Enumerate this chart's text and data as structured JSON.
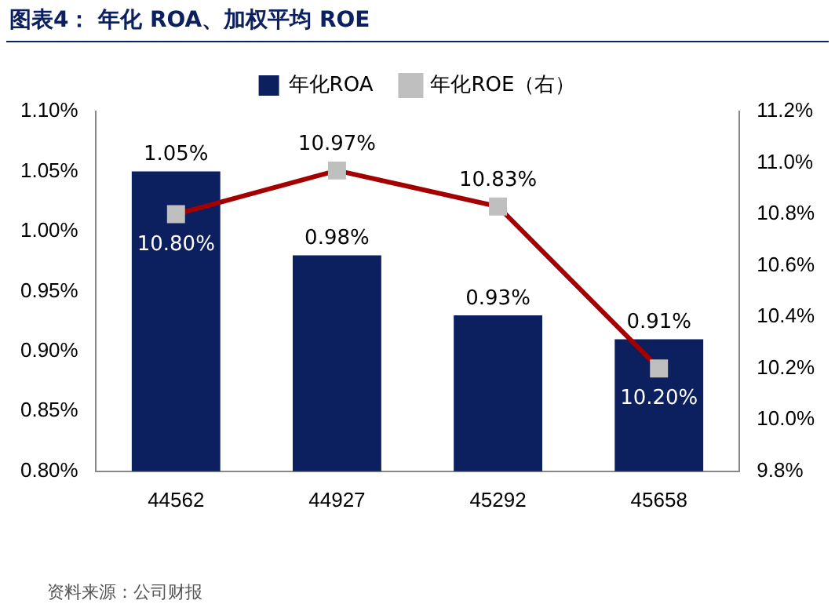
{
  "chart_data": {
    "type": "bar",
    "title": "图表4：  年化 ROA、加权平均 ROE",
    "categories": [
      "44562",
      "44927",
      "45292",
      "45658"
    ],
    "series": [
      {
        "name": "年化ROA",
        "color": "#0c1f5e",
        "values": [
          1.05,
          0.98,
          0.93,
          0.91
        ],
        "value_labels": [
          "1.05%",
          "0.98%",
          "0.93%",
          "0.91%"
        ]
      },
      {
        "name": "年化ROE（右）",
        "type": "line",
        "axis": "y2",
        "color": "#a50000",
        "marker": "square",
        "values": [
          10.8,
          10.97,
          10.83,
          10.2
        ],
        "value_labels": [
          "10.80%",
          "10.97%",
          "10.83%",
          "10.20%"
        ]
      }
    ],
    "ylim": [
      0.8,
      1.1
    ],
    "yticks": [
      {
        "value": 0.8,
        "label": "0.80%"
      },
      {
        "value": 0.85,
        "label": "0.85%"
      },
      {
        "value": 0.9,
        "label": "0.90%"
      },
      {
        "value": 0.95,
        "label": "0.95%"
      },
      {
        "value": 1.0,
        "label": "1.00%"
      },
      {
        "value": 1.05,
        "label": "1.05%"
      },
      {
        "value": 1.1,
        "label": "1.10%"
      }
    ],
    "y2lim": [
      9.8,
      11.2
    ],
    "y2ticks": [
      {
        "value": 9.8,
        "label": "9.8%"
      },
      {
        "value": 10.0,
        "label": "10.0%"
      },
      {
        "value": 10.2,
        "label": "10.2%"
      },
      {
        "value": 10.4,
        "label": "10.4%"
      },
      {
        "value": 10.6,
        "label": "10.6%"
      },
      {
        "value": 10.8,
        "label": "10.8%"
      },
      {
        "value": 11.0,
        "label": "11.0%"
      },
      {
        "value": 11.2,
        "label": "11.2%"
      }
    ],
    "legend": "top",
    "grid": false,
    "annotations": [
      "资料来源：公司财报"
    ]
  }
}
